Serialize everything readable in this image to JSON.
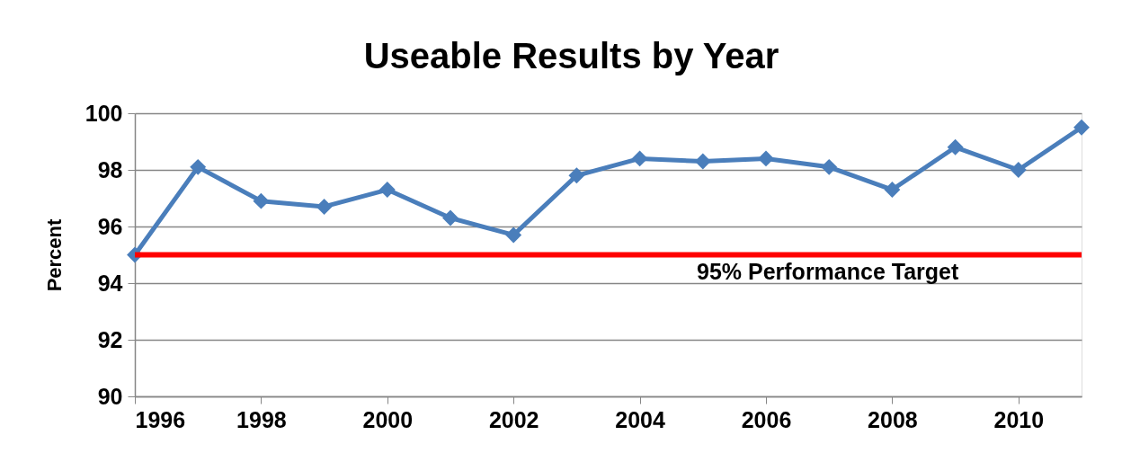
{
  "chart_data": {
    "type": "line",
    "title": "Useable Results by Year",
    "ylabel": "Percent",
    "x": [
      1996,
      1997,
      1998,
      1999,
      2000,
      2001,
      2002,
      2003,
      2004,
      2005,
      2006,
      2007,
      2008,
      2009,
      2010,
      2011
    ],
    "series": [
      {
        "color": "#4a7ebb",
        "values": [
          95.0,
          98.1,
          96.9,
          96.7,
          97.3,
          96.3,
          95.7,
          97.8,
          98.4,
          98.3,
          98.4,
          98.1,
          97.3,
          98.8,
          98.0,
          99.5
        ]
      }
    ],
    "xlim": [
      1996,
      2011
    ],
    "xticks": [
      1996,
      1998,
      2000,
      2002,
      2004,
      2006,
      2008,
      2010
    ],
    "ylim": [
      90,
      100
    ],
    "yticks": [
      90,
      92,
      94,
      96,
      98,
      100
    ],
    "grid": "y",
    "marker": "diamond",
    "line_style": "solid",
    "ref_lines": [
      {
        "axis": "y",
        "value": 95,
        "label": "95% Performance Target",
        "color": "#ff0000"
      }
    ]
  }
}
